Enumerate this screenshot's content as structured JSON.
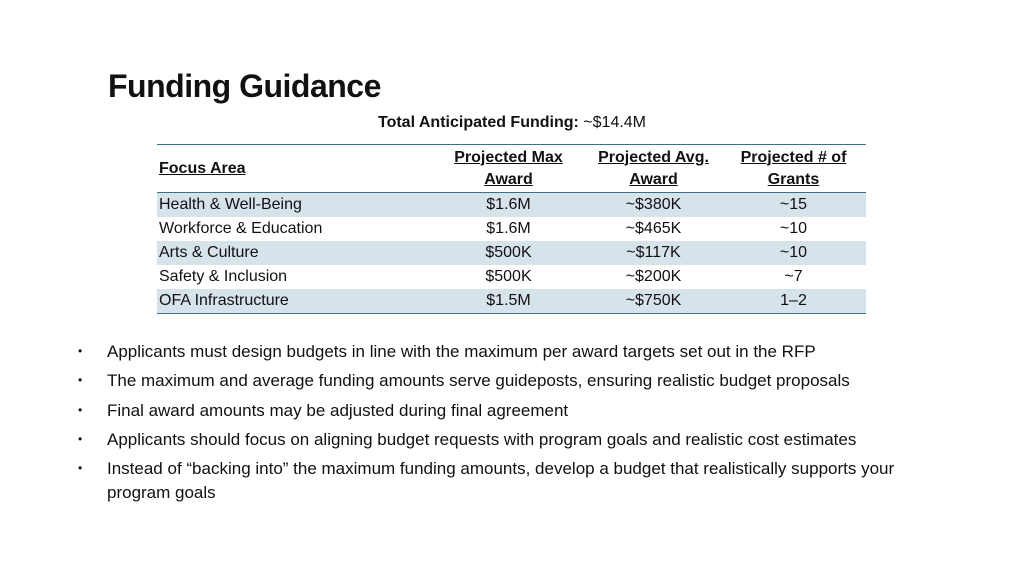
{
  "title": "Funding Guidance",
  "total": {
    "label": "Total Anticipated Funding:",
    "value": "~$14.4M"
  },
  "table": {
    "headers": [
      "Focus Area",
      "Projected Max Award",
      "Projected Avg. Award",
      "Projected # of Grants"
    ],
    "rows": [
      [
        "Health & Well-Being",
        "$1.6M",
        "~$380K",
        "~15"
      ],
      [
        "Workforce & Education",
        "$1.6M",
        "~$465K",
        "~10"
      ],
      [
        "Arts & Culture",
        "$500K",
        "~$117K",
        "~10"
      ],
      [
        "Safety & Inclusion",
        "$500K",
        "~$200K",
        "~7"
      ],
      [
        "OFA Infrastructure",
        "$1.5M",
        "~$750K",
        "1–2"
      ]
    ]
  },
  "bullets": [
    "Applicants must design budgets in line with the maximum per award targets set out in the RFP",
    "The maximum and average funding amounts serve guideposts, ensuring realistic budget proposals",
    "Final award amounts may be adjusted during final agreement",
    "Applicants should focus on aligning budget requests with program goals and realistic cost estimates",
    "Instead of “backing into” the maximum funding amounts, develop a budget that realistically supports your program goals"
  ],
  "colors": {
    "band": "#d6e3ea",
    "rule": "#3f6f86"
  }
}
